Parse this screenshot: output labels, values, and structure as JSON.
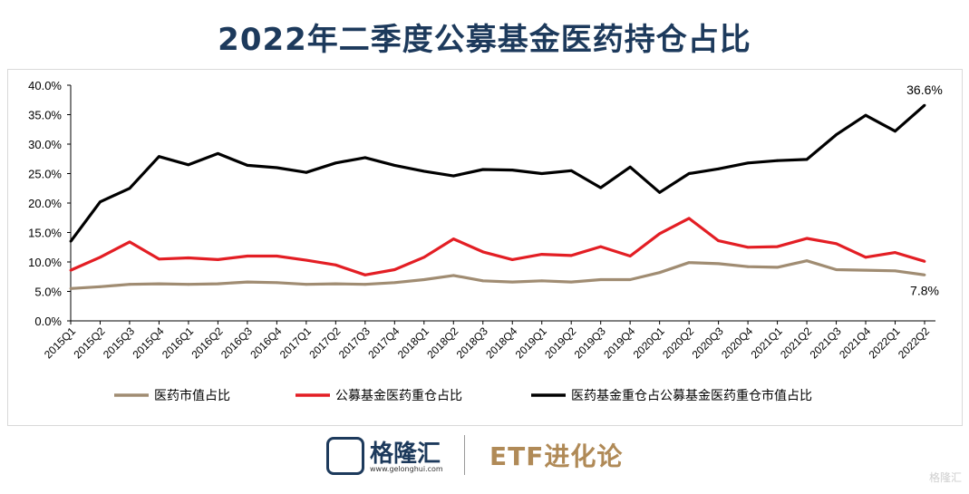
{
  "title": "2022年二季度公募基金医药持仓占比",
  "chart_data": {
    "type": "line",
    "x": [
      "2015Q1",
      "2015Q2",
      "2015Q3",
      "2015Q4",
      "2016Q1",
      "2016Q2",
      "2016Q3",
      "2016Q4",
      "2017Q1",
      "2017Q2",
      "2017Q3",
      "2017Q4",
      "2018Q1",
      "2018Q2",
      "2018Q3",
      "2018Q4",
      "2019Q1",
      "2019Q2",
      "2019Q3",
      "2019Q4",
      "2020Q1",
      "2020Q2",
      "2020Q3",
      "2020Q4",
      "2021Q1",
      "2021Q2",
      "2021Q3",
      "2021Q4",
      "2022Q1",
      "2022Q2"
    ],
    "ylim": [
      0,
      40
    ],
    "yticks": [
      "0.0%",
      "5.0%",
      "10.0%",
      "15.0%",
      "20.0%",
      "25.0%",
      "30.0%",
      "35.0%",
      "40.0%"
    ],
    "grid": false,
    "legend_position": "bottom",
    "series": [
      {
        "name": "医药市值占比",
        "color": "#a08c72",
        "values": [
          5.5,
          5.8,
          6.2,
          6.3,
          6.2,
          6.3,
          6.6,
          6.5,
          6.2,
          6.3,
          6.2,
          6.5,
          7.0,
          7.7,
          6.8,
          6.6,
          6.8,
          6.6,
          7.0,
          7.0,
          8.2,
          9.9,
          9.7,
          9.2,
          9.1,
          10.2,
          8.7,
          8.6,
          8.5,
          7.8
        ]
      },
      {
        "name": "公募基金医药重仓占比",
        "color": "#e31e24",
        "values": [
          8.6,
          10.8,
          13.4,
          10.5,
          10.7,
          10.4,
          11.0,
          11.0,
          10.3,
          9.5,
          7.8,
          8.7,
          10.8,
          13.9,
          11.7,
          10.4,
          11.3,
          11.1,
          12.6,
          11.0,
          14.8,
          17.4,
          13.6,
          12.5,
          12.6,
          14.0,
          13.1,
          10.8,
          11.6,
          10.1
        ]
      },
      {
        "name": "医药基金重仓占公募基金医药重仓市值占比",
        "color": "#000000",
        "values": [
          13.5,
          20.2,
          22.5,
          27.9,
          26.5,
          28.4,
          26.4,
          26.0,
          25.2,
          26.8,
          27.7,
          26.4,
          25.4,
          24.6,
          25.7,
          25.6,
          25.0,
          25.5,
          22.6,
          26.1,
          21.8,
          25.0,
          25.8,
          26.8,
          27.2,
          27.4,
          31.6,
          34.9,
          32.2,
          36.6
        ]
      }
    ],
    "annotations": [
      {
        "text": "36.6%",
        "series": 2,
        "index": 29
      },
      {
        "text": "7.8%",
        "series": 0,
        "index": 29
      }
    ]
  },
  "footer": {
    "logo_text": "格隆汇",
    "logo_url": "www.gelonghui.com",
    "brand": "ETF进化论",
    "watermark": "格隆汇"
  }
}
